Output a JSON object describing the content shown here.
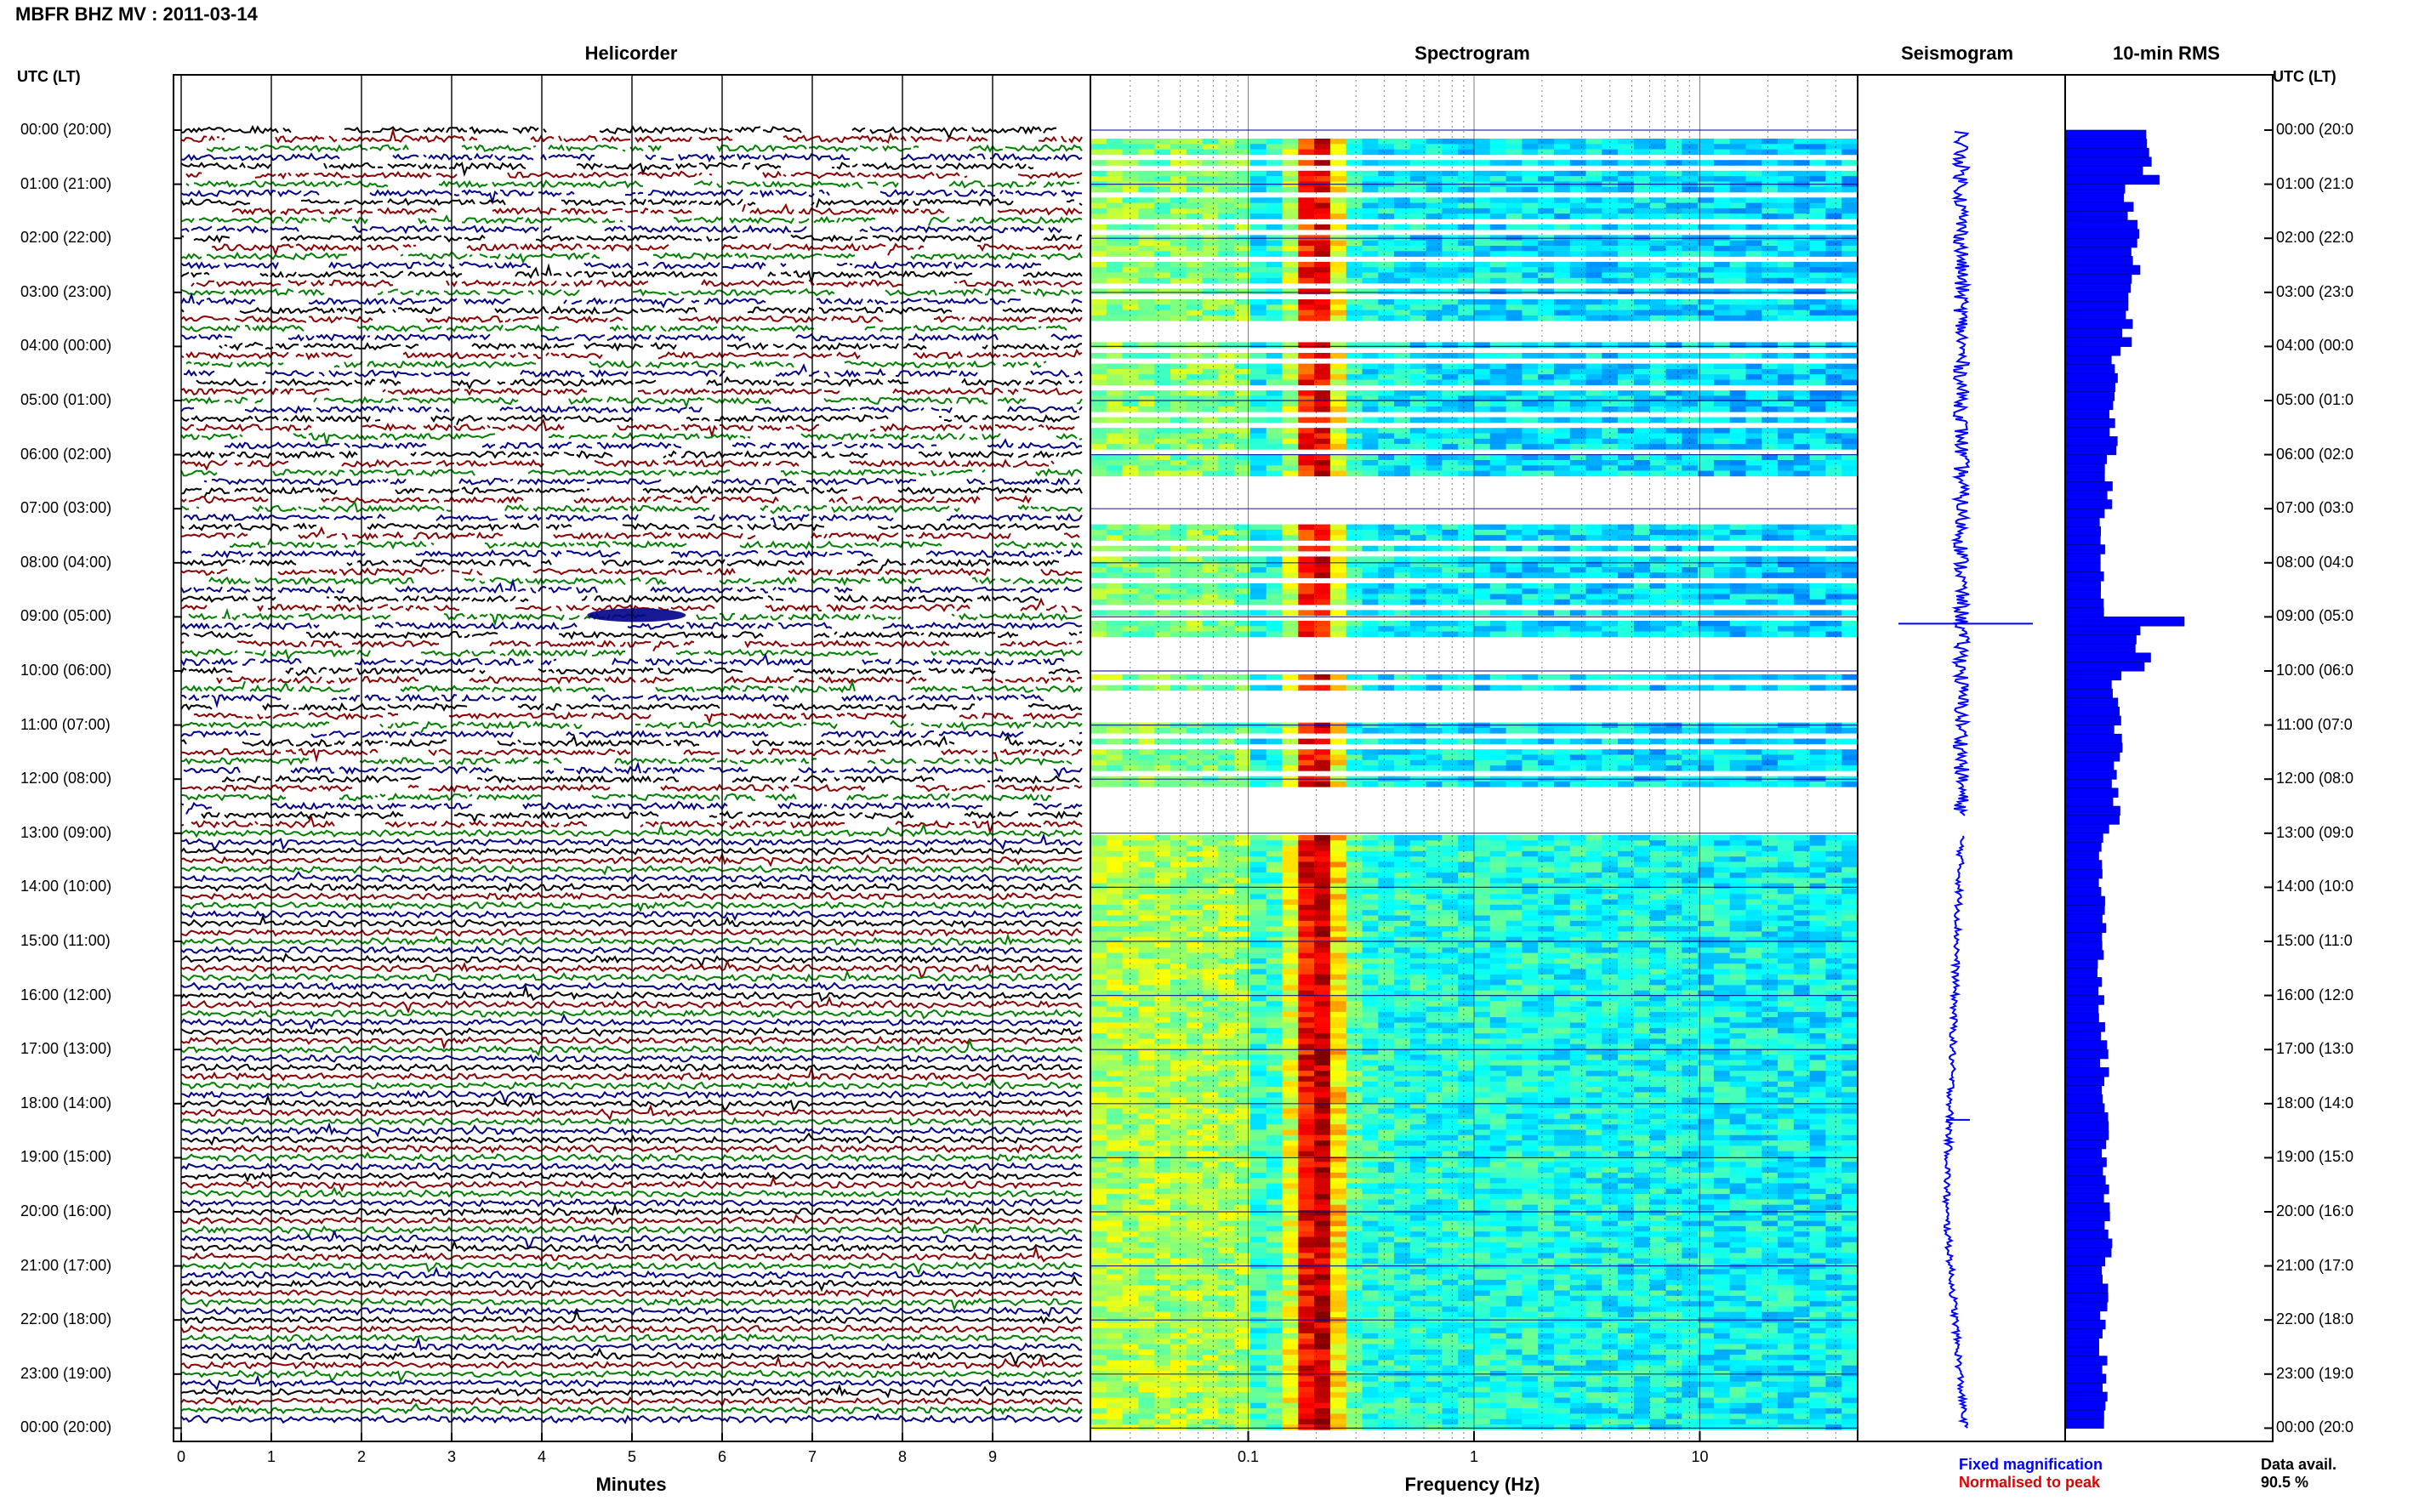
{
  "title": "MBFR BHZ MV : 2011-03-14",
  "panels": {
    "helicorder": "Helicorder",
    "spectrogram": "Spectrogram",
    "seismogram": "Seismogram",
    "rms": "10-min RMS"
  },
  "utc_label_left": "UTC (LT)",
  "utc_label_right": "UTC (LT)",
  "legend": {
    "fixed": "Fixed magnification",
    "normalised": "Normalised to peak"
  },
  "data_avail": {
    "label": "Data avail.",
    "value": "90.5 %"
  },
  "colors": {
    "trace_cycle": [
      "#000000",
      "#8b0000",
      "#007f00",
      "#00008b"
    ],
    "seismogram": "#0000ff",
    "rms": "#0000ff",
    "legend_fixed": "#0000ff",
    "legend_normalised": "#e00000"
  },
  "chart_data": [
    {
      "type": "line",
      "panel": "helicorder",
      "xlabel": "Minutes",
      "xlim": [
        0,
        10
      ],
      "x_ticks": [
        0,
        1,
        2,
        3,
        4,
        5,
        6,
        7,
        8,
        9
      ],
      "y_tick_labels_left": [
        "00:00 (20:00)",
        "01:00 (21:00)",
        "02:00 (22:00)",
        "03:00 (23:00)",
        "04:00 (00:00)",
        "05:00 (01:00)",
        "06:00 (02:00)",
        "07:00 (03:00)",
        "08:00 (04:00)",
        "09:00 (05:00)",
        "10:00 (06:00)",
        "11:00 (07:00)",
        "12:00 (08:00)",
        "13:00 (09:00)",
        "14:00 (10:00)",
        "15:00 (11:00)",
        "16:00 (12:00)",
        "17:00 (13:00)",
        "18:00 (14:00)",
        "19:00 (15:00)",
        "20:00 (16:00)",
        "21:00 (17:00)",
        "22:00 (18:00)",
        "23:00 (19:00)",
        "00:00 (20:00)"
      ],
      "y_tick_labels_right": [
        "00:00 (20:0",
        "01:00 (21:0",
        "02:00 (22:0",
        "03:00 (23:0",
        "04:00 (00:0",
        "05:00 (01:0",
        "06:00 (02:0",
        "07:00 (03:0",
        "08:00 (04:0",
        "09:00 (05:0",
        "10:00 (06:0",
        "11:00 (07:0",
        "12:00 (08:0",
        "13:00 (09:0",
        "14:00 (10:0",
        "15:00 (11:0",
        "16:00 (12:0",
        "17:00 (13:0",
        "18:00 (14:0",
        "19:00 (15:0",
        "20:00 (16:0",
        "21:00 (17:0",
        "22:00 (18:0",
        "23:00 (19:0",
        "00:00 (20:0"
      ],
      "lines_per_hour": 6,
      "gappy_until_hour": 13
    },
    {
      "type": "heatmap",
      "panel": "spectrogram",
      "xlabel": "Frequency (Hz)",
      "x_scale": "log",
      "xlim": [
        0.02,
        50
      ],
      "x_tick_labels": [
        "0.1",
        "1",
        "10"
      ],
      "x_tick_values": [
        0.1,
        1,
        10
      ],
      "microseism_peak_hz": 0.2,
      "colormap": "jet"
    },
    {
      "type": "line",
      "panel": "seismogram",
      "legend": [
        "Fixed magnification",
        "Normalised to peak"
      ]
    },
    {
      "type": "bar",
      "panel": "rms",
      "orientation": "horizontal",
      "interval_minutes": 10,
      "hourly_values": [
        1.0,
        0.78,
        0.8,
        0.74,
        0.58,
        0.56,
        0.5,
        0.44,
        0.46,
        0.9,
        0.6,
        0.62,
        0.58,
        0.42,
        0.46,
        0.42,
        0.44,
        0.46,
        0.48,
        0.5,
        0.52,
        0.46,
        0.44,
        0.46
      ],
      "events": [
        {
          "hour": 9.0,
          "value": 1.4
        }
      ]
    }
  ]
}
